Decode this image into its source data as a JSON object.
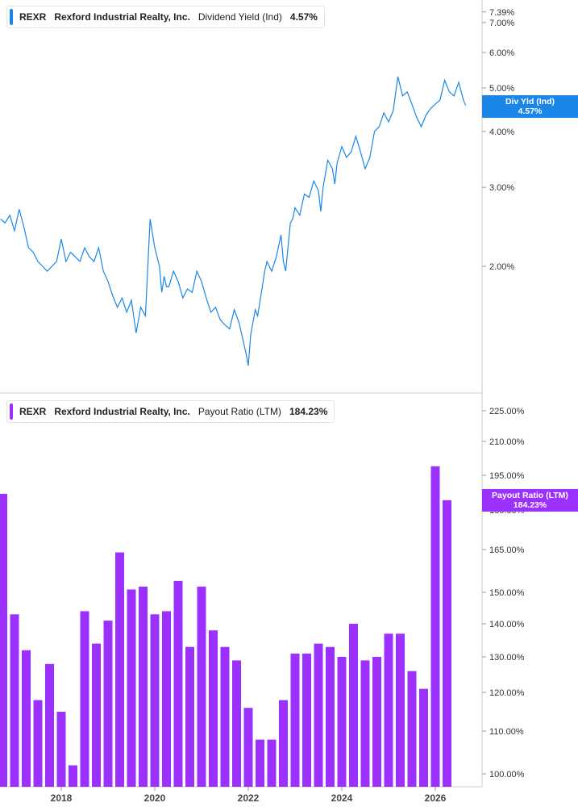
{
  "colors": {
    "yield_line": "#1a87e8",
    "payout_bar": "#9b30ff",
    "axis": "#cccccc"
  },
  "chart_data": [
    {
      "type": "line",
      "ticker": "REXR",
      "company": "Rexford Industrial Realty, Inc.",
      "metric": "Dividend Yield (Ind)",
      "current_value": "4.57%",
      "tag_label": "Div Yld (Ind)",
      "tag_value": "4.57%",
      "y_scale": "log",
      "y_ticks": [
        "7.39%",
        "7.00%",
        "6.00%",
        "5.00%",
        "4.00%",
        "3.00%",
        "2.00%"
      ],
      "x_ticks": [
        "2018",
        "2020",
        "2022",
        "2024",
        "2026"
      ],
      "x": [
        2016.7,
        2016.8,
        2016.9,
        2017.0,
        2017.1,
        2017.2,
        2017.3,
        2017.4,
        2017.5,
        2017.6,
        2017.7,
        2017.8,
        2017.9,
        2018.0,
        2018.1,
        2018.2,
        2018.3,
        2018.4,
        2018.5,
        2018.6,
        2018.7,
        2018.8,
        2018.9,
        2019.0,
        2019.1,
        2019.2,
        2019.3,
        2019.4,
        2019.5,
        2019.6,
        2019.7,
        2019.8,
        2019.9,
        2020.0,
        2020.1,
        2020.15,
        2020.2,
        2020.25,
        2020.3,
        2020.4,
        2020.5,
        2020.6,
        2020.7,
        2020.8,
        2020.9,
        2021.0,
        2021.1,
        2021.2,
        2021.3,
        2021.4,
        2021.5,
        2021.6,
        2021.7,
        2021.8,
        2021.9,
        2021.95,
        2022.0,
        2022.05,
        2022.1,
        2022.15,
        2022.2,
        2022.3,
        2022.35,
        2022.4,
        2022.5,
        2022.6,
        2022.7,
        2022.75,
        2022.8,
        2022.9,
        2022.95,
        2023.0,
        2023.1,
        2023.2,
        2023.3,
        2023.4,
        2023.5,
        2023.55,
        2023.6,
        2023.7,
        2023.8,
        2023.85,
        2023.9,
        2024.0,
        2024.1,
        2024.2,
        2024.3,
        2024.4,
        2024.5,
        2024.6,
        2024.7,
        2024.8,
        2024.9,
        2025.0,
        2025.1,
        2025.2,
        2025.3,
        2025.4,
        2025.5,
        2025.6,
        2025.7,
        2025.8,
        2025.9,
        2026.0,
        2026.1,
        2026.2,
        2026.3,
        2026.4,
        2026.5,
        2026.6,
        2026.65
      ],
      "y": [
        2.55,
        2.5,
        2.6,
        2.4,
        2.68,
        2.45,
        2.2,
        2.15,
        2.05,
        2.0,
        1.95,
        2.0,
        2.05,
        2.3,
        2.05,
        2.15,
        2.1,
        2.05,
        2.2,
        2.1,
        2.05,
        2.2,
        1.95,
        1.85,
        1.72,
        1.62,
        1.7,
        1.58,
        1.68,
        1.42,
        1.62,
        1.55,
        2.55,
        2.2,
        2.0,
        1.75,
        1.9,
        1.8,
        1.8,
        1.95,
        1.85,
        1.7,
        1.78,
        1.75,
        1.95,
        1.85,
        1.7,
        1.58,
        1.62,
        1.52,
        1.48,
        1.45,
        1.6,
        1.5,
        1.35,
        1.28,
        1.2,
        1.4,
        1.5,
        1.6,
        1.55,
        1.8,
        1.95,
        2.05,
        1.95,
        2.1,
        2.35,
        2.05,
        1.95,
        2.5,
        2.55,
        2.7,
        2.6,
        2.9,
        2.85,
        3.1,
        2.95,
        2.65,
        3.0,
        3.45,
        3.3,
        3.05,
        3.4,
        3.7,
        3.5,
        3.6,
        3.9,
        3.6,
        3.3,
        3.5,
        4.0,
        4.1,
        4.4,
        4.2,
        4.45,
        5.3,
        4.8,
        4.9,
        4.6,
        4.3,
        4.1,
        4.35,
        4.5,
        4.6,
        4.7,
        5.2,
        4.9,
        4.8,
        5.15,
        4.7,
        4.57
      ]
    },
    {
      "type": "bar",
      "ticker": "REXR",
      "company": "Rexford Industrial Realty, Inc.",
      "metric": "Payout Ratio (LTM)",
      "current_value": "184.23%",
      "tag_label": "Payout Ratio (LTM)",
      "tag_value": "184.23%",
      "y_ticks": [
        "225.00%",
        "210.00%",
        "195.00%",
        "180.00%",
        "165.00%",
        "150.00%",
        "140.00%",
        "130.00%",
        "120.00%",
        "110.00%",
        "100.00%"
      ],
      "x_ticks": [
        "2018",
        "2020",
        "2022",
        "2024",
        "2026"
      ],
      "x": [
        2016.75,
        2017.0,
        2017.25,
        2017.5,
        2017.75,
        2018.0,
        2018.25,
        2018.5,
        2018.75,
        2019.0,
        2019.25,
        2019.5,
        2019.75,
        2020.0,
        2020.25,
        2020.5,
        2020.75,
        2021.0,
        2021.25,
        2021.5,
        2021.75,
        2022.0,
        2022.25,
        2022.5,
        2022.75,
        2023.0,
        2023.25,
        2023.5,
        2023.75,
        2024.0,
        2024.25,
        2024.5,
        2024.75,
        2025.0,
        2025.25,
        2025.5,
        2025.75,
        2026.0,
        2026.25
      ],
      "values": [
        187,
        143,
        132,
        118,
        128,
        115,
        102,
        144,
        134,
        141,
        164,
        151,
        152,
        143,
        144,
        154,
        133,
        152,
        138,
        133,
        129,
        116,
        108,
        108,
        118,
        131,
        131,
        134,
        133,
        130,
        140,
        129,
        130,
        137,
        137,
        126,
        121,
        199,
        184.23
      ]
    }
  ]
}
